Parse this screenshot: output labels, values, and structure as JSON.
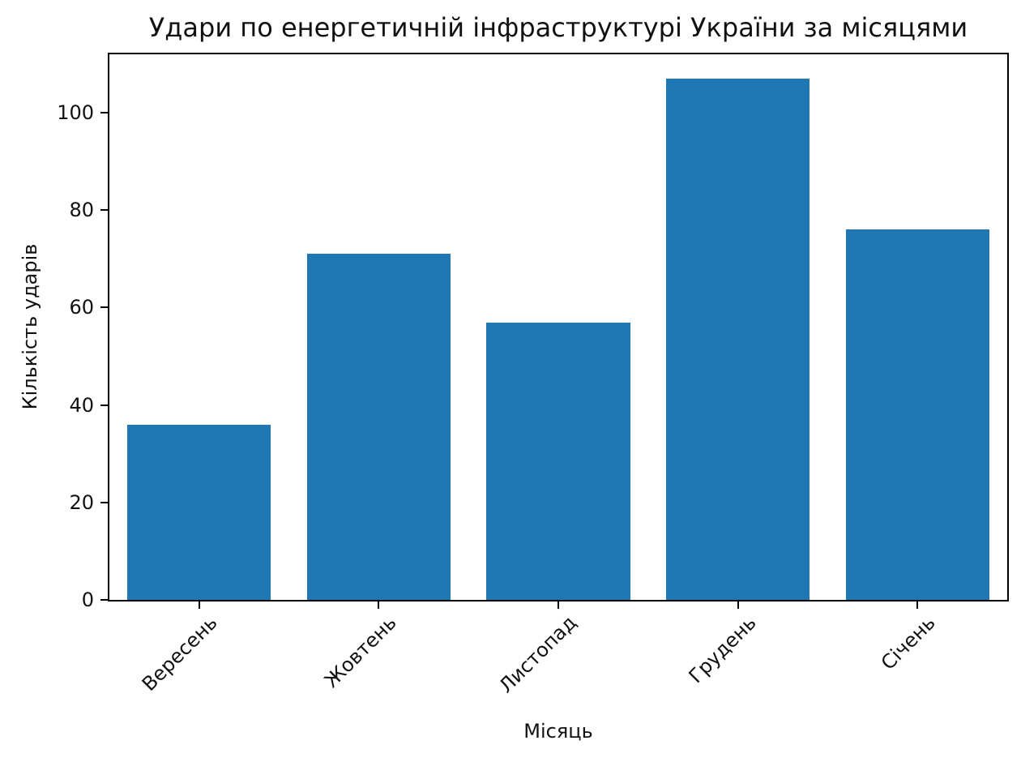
{
  "chart_data": {
    "type": "bar",
    "title": "Удари по енергетичній інфраструктурі України за місяцями",
    "xlabel": "Місяць",
    "ylabel": "Кількість ударів",
    "categories": [
      "Вересень",
      "Жовтень",
      "Листопад",
      "Грудень",
      "Січень"
    ],
    "values": [
      36,
      71,
      57,
      107,
      76
    ],
    "ylim": [
      0,
      112
    ],
    "yticks": [
      0,
      20,
      40,
      60,
      80,
      100
    ],
    "bar_color": "#1f77b4",
    "bar_width_fraction": 0.8,
    "x_tick_rotation_deg": 45,
    "grid": false,
    "legend": "none",
    "background_color": "#ffffff",
    "spine_color": "#000000",
    "text_color": "#111111"
  }
}
